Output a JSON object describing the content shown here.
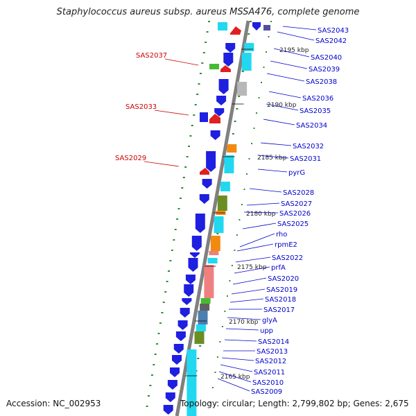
{
  "title": "Staphylococcus aureus subsp. aureus MSSA476, complete genome",
  "accession": "Accession: NC_002953",
  "summary": "Topology: circular; Length: 2,799,802 bp; Genes: 2,675",
  "colors": {
    "backbone": "#808080",
    "blue": "#1f1fe0",
    "cyan": "#22d8f0",
    "red": "#e02020",
    "green": "#44bb33",
    "olive": "#6b8e23",
    "orange": "#f28a10",
    "pink": "#f08080",
    "gray": "#b8b8b8",
    "slate": "#4d7fb0",
    "darkgreen": "#2a7a2a",
    "label_blue": "#0000cc",
    "label_red": "#cc0000"
  },
  "positions": [
    {
      "label": "2195 kbp"
    },
    {
      "label": "2190 kbp"
    },
    {
      "label": "2185 kbp"
    },
    {
      "label": "2180 kbp"
    },
    {
      "label": "2175 kbp"
    },
    {
      "label": "2170 kbp"
    },
    {
      "label": "2165 kbp"
    }
  ],
  "genes_right": [
    {
      "name": "SAS2043"
    },
    {
      "name": "SAS2042"
    },
    {
      "name": "SAS2040"
    },
    {
      "name": "SAS2039"
    },
    {
      "name": "SAS2038"
    },
    {
      "name": "SAS2036"
    },
    {
      "name": "SAS2035"
    },
    {
      "name": "SAS2034"
    },
    {
      "name": "SAS2032"
    },
    {
      "name": "SAS2031"
    },
    {
      "name": "pyrG"
    },
    {
      "name": "SAS2028"
    },
    {
      "name": "SAS2027"
    },
    {
      "name": "SAS2026"
    },
    {
      "name": "SAS2025"
    },
    {
      "name": "rho"
    },
    {
      "name": "rpmE2"
    },
    {
      "name": "SAS2022"
    },
    {
      "name": "prfA"
    },
    {
      "name": "SAS2020"
    },
    {
      "name": "SAS2019"
    },
    {
      "name": "SAS2018"
    },
    {
      "name": "SAS2017"
    },
    {
      "name": "glyA"
    },
    {
      "name": "upp"
    },
    {
      "name": "SAS2014"
    },
    {
      "name": "SAS2013"
    },
    {
      "name": "SAS2012"
    },
    {
      "name": "SAS2011"
    },
    {
      "name": "SAS2010"
    },
    {
      "name": "SAS2009"
    }
  ],
  "genes_left": [
    {
      "name": "SAS2037"
    },
    {
      "name": "SAS2033"
    },
    {
      "name": "SAS2029"
    }
  ]
}
